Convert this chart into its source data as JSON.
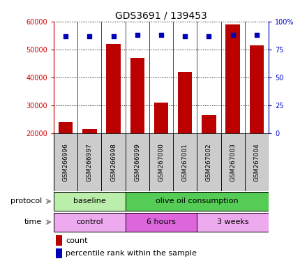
{
  "title": "GDS3691 / 139453",
  "samples": [
    "GSM266996",
    "GSM266997",
    "GSM266998",
    "GSM266999",
    "GSM267000",
    "GSM267001",
    "GSM267002",
    "GSM267003",
    "GSM267004"
  ],
  "counts": [
    24000,
    21500,
    52000,
    47000,
    31000,
    42000,
    26500,
    59000,
    51500
  ],
  "pct_values": [
    87,
    87,
    87,
    88,
    88,
    87,
    87,
    88,
    88
  ],
  "bar_color": "#bb0000",
  "dot_color": "#0000bb",
  "ylim_left": [
    20000,
    60000
  ],
  "ylim_right": [
    0,
    100
  ],
  "yticks_left": [
    20000,
    30000,
    40000,
    50000,
    60000
  ],
  "yticks_right": [
    0,
    25,
    50,
    75,
    100
  ],
  "ytick_right_labels": [
    "0",
    "25",
    "50",
    "75",
    "100%"
  ],
  "protocol_groups": [
    {
      "label": "baseline",
      "start": 0,
      "end": 3,
      "color": "#bbeeaa"
    },
    {
      "label": "olive oil consumption",
      "start": 3,
      "end": 9,
      "color": "#55cc55"
    }
  ],
  "time_groups": [
    {
      "label": "control",
      "start": 0,
      "end": 3,
      "color": "#eeaaee"
    },
    {
      "label": "6 hours",
      "start": 3,
      "end": 6,
      "color": "#dd66dd"
    },
    {
      "label": "3 weeks",
      "start": 6,
      "end": 9,
      "color": "#eeaaee"
    }
  ],
  "legend_count_label": "count",
  "legend_pct_label": "percentile rank within the sample",
  "protocol_label": "protocol",
  "time_label": "time",
  "n_samples": 9,
  "left_axis_color": "#cc0000",
  "right_axis_color": "#0000cc",
  "tick_box_color": "#cccccc"
}
